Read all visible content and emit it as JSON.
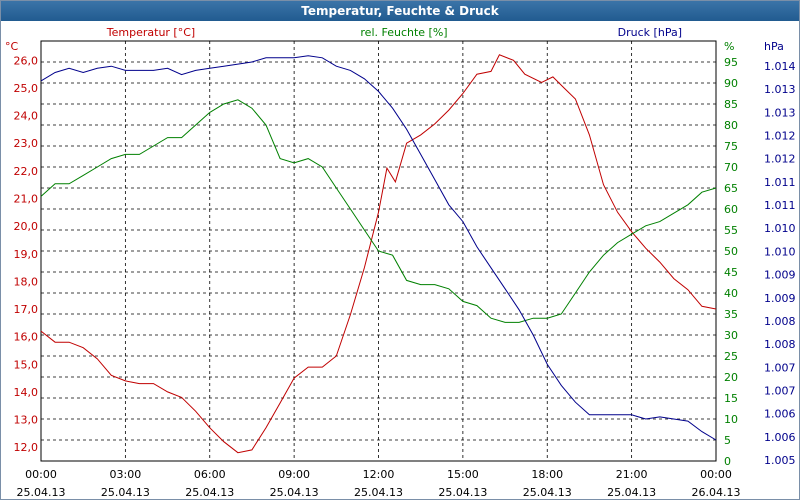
{
  "title": "Temperatur, Feuchte & Druck",
  "colors": {
    "temperature": "#c00000",
    "humidity": "#008000",
    "pressure": "#00008b",
    "grid": "#000000",
    "titlebar": "#2b6397"
  },
  "chart_data": {
    "type": "line",
    "title": "Temperatur, Feuchte & Druck",
    "grid": true,
    "xlabel": "",
    "x_ticks": [
      {
        "time": "00:00",
        "date": "25.04.13"
      },
      {
        "time": "03:00",
        "date": "25.04.13"
      },
      {
        "time": "06:00",
        "date": "25.04.13"
      },
      {
        "time": "09:00",
        "date": "25.04.13"
      },
      {
        "time": "12:00",
        "date": "25.04.13"
      },
      {
        "time": "15:00",
        "date": "25.04.13"
      },
      {
        "time": "18:00",
        "date": "25.04.13"
      },
      {
        "time": "21:00",
        "date": "25.04.13"
      },
      {
        "time": "00:00",
        "date": "26.04.13"
      }
    ],
    "xlim": [
      0,
      24
    ],
    "axes": {
      "left": {
        "unit": "°C",
        "ylim": [
          11.5,
          26.7
        ],
        "ticks": [
          "12,0",
          "13,0",
          "14,0",
          "15,0",
          "16,0",
          "17,0",
          "18,0",
          "19,0",
          "20,0",
          "21,0",
          "22,0",
          "23,0",
          "24,0",
          "25,0",
          "26,0"
        ]
      },
      "hum": {
        "unit": "%",
        "ylim": [
          0,
          100
        ],
        "ticks": [
          "0",
          "5",
          "10",
          "15",
          "20",
          "25",
          "30",
          "35",
          "40",
          "45",
          "50",
          "55",
          "60",
          "65",
          "70",
          "75",
          "80",
          "85",
          "90",
          "95"
        ]
      },
      "right": {
        "unit": "hPa",
        "ticks": [
          "1.005",
          "1.006",
          "1.006",
          "1.007",
          "1.007",
          "1.008",
          "1.008",
          "1.009",
          "1.009",
          "1.010",
          "1.010",
          "1.011",
          "1.011",
          "1.012",
          "1.012",
          "1.013",
          "1.013",
          "1.014"
        ]
      }
    },
    "series": [
      {
        "name": "Temperatur [°C]",
        "axis": "left",
        "points": [
          [
            0,
            16.2
          ],
          [
            0.5,
            15.8
          ],
          [
            1,
            15.8
          ],
          [
            1.5,
            15.6
          ],
          [
            2,
            15.2
          ],
          [
            2.5,
            14.6
          ],
          [
            3,
            14.4
          ],
          [
            3.5,
            14.3
          ],
          [
            4,
            14.3
          ],
          [
            4.5,
            14.0
          ],
          [
            5,
            13.8
          ],
          [
            5.5,
            13.3
          ],
          [
            6,
            12.7
          ],
          [
            6.5,
            12.2
          ],
          [
            7,
            11.8
          ],
          [
            7.5,
            11.9
          ],
          [
            8,
            12.7
          ],
          [
            8.5,
            13.6
          ],
          [
            9,
            14.5
          ],
          [
            9.5,
            14.9
          ],
          [
            10,
            14.9
          ],
          [
            10.5,
            15.3
          ],
          [
            11,
            16.8
          ],
          [
            11.5,
            18.5
          ],
          [
            12,
            20.5
          ],
          [
            12.3,
            22.1
          ],
          [
            12.6,
            21.6
          ],
          [
            13,
            23.0
          ],
          [
            13.5,
            23.3
          ],
          [
            14,
            23.7
          ],
          [
            14.5,
            24.2
          ],
          [
            15,
            24.8
          ],
          [
            15.5,
            25.5
          ],
          [
            16,
            25.6
          ],
          [
            16.3,
            26.2
          ],
          [
            16.8,
            26.0
          ],
          [
            17.2,
            25.5
          ],
          [
            17.8,
            25.2
          ],
          [
            18.2,
            25.4
          ],
          [
            18.6,
            25.0
          ],
          [
            19,
            24.6
          ],
          [
            19.5,
            23.3
          ],
          [
            20,
            21.5
          ],
          [
            20.5,
            20.5
          ],
          [
            21,
            19.8
          ],
          [
            21.5,
            19.2
          ],
          [
            22,
            18.7
          ],
          [
            22.5,
            18.1
          ],
          [
            23,
            17.7
          ],
          [
            23.5,
            17.1
          ],
          [
            24,
            17.0
          ]
        ]
      },
      {
        "name": "rel. Feuchte [%]",
        "axis": "hum",
        "points": [
          [
            0,
            63
          ],
          [
            0.5,
            66
          ],
          [
            1,
            66
          ],
          [
            1.5,
            68
          ],
          [
            2,
            70
          ],
          [
            2.5,
            72
          ],
          [
            3,
            73
          ],
          [
            3.5,
            73
          ],
          [
            4,
            75
          ],
          [
            4.5,
            77
          ],
          [
            5,
            77
          ],
          [
            5.5,
            80
          ],
          [
            6,
            83
          ],
          [
            6.5,
            85
          ],
          [
            7,
            86
          ],
          [
            7.5,
            84
          ],
          [
            8,
            80
          ],
          [
            8.5,
            72
          ],
          [
            9,
            71
          ],
          [
            9.5,
            72
          ],
          [
            10,
            70
          ],
          [
            10.5,
            65
          ],
          [
            11,
            60
          ],
          [
            11.5,
            55
          ],
          [
            12,
            50
          ],
          [
            12.5,
            49
          ],
          [
            13,
            43
          ],
          [
            13.5,
            42
          ],
          [
            14,
            42
          ],
          [
            14.5,
            41
          ],
          [
            15,
            38
          ],
          [
            15.5,
            37
          ],
          [
            16,
            34
          ],
          [
            16.5,
            33
          ],
          [
            17,
            33
          ],
          [
            17.5,
            34
          ],
          [
            18,
            34
          ],
          [
            18.5,
            35
          ],
          [
            19,
            40
          ],
          [
            19.5,
            45
          ],
          [
            20,
            49
          ],
          [
            20.5,
            52
          ],
          [
            21,
            54
          ],
          [
            21.5,
            56
          ],
          [
            22,
            57
          ],
          [
            22.5,
            59
          ],
          [
            23,
            61
          ],
          [
            23.5,
            64
          ],
          [
            24,
            65
          ]
        ]
      },
      {
        "name": "Druck [hPa]",
        "axis": "right",
        "points": [
          [
            0,
            90.5
          ],
          [
            0.5,
            92.5
          ],
          [
            1,
            93.5
          ],
          [
            1.5,
            92.5
          ],
          [
            2,
            93.5
          ],
          [
            2.5,
            94
          ],
          [
            3,
            93
          ],
          [
            3.5,
            93
          ],
          [
            4,
            93
          ],
          [
            4.5,
            93.5
          ],
          [
            5,
            92
          ],
          [
            5.5,
            93
          ],
          [
            6,
            93.5
          ],
          [
            6.5,
            94
          ],
          [
            7,
            94.5
          ],
          [
            7.5,
            95
          ],
          [
            8,
            96
          ],
          [
            8.5,
            96
          ],
          [
            9,
            96
          ],
          [
            9.5,
            96.5
          ],
          [
            10,
            96
          ],
          [
            10.5,
            94
          ],
          [
            11,
            93
          ],
          [
            11.5,
            91
          ],
          [
            12,
            88
          ],
          [
            12.5,
            84
          ],
          [
            13,
            79
          ],
          [
            13.5,
            73
          ],
          [
            14,
            67
          ],
          [
            14.5,
            61
          ],
          [
            15,
            57
          ],
          [
            15.5,
            51
          ],
          [
            16,
            46
          ],
          [
            16.5,
            41
          ],
          [
            17,
            36
          ],
          [
            17.5,
            30
          ],
          [
            18,
            23
          ],
          [
            18.5,
            18
          ],
          [
            19,
            14
          ],
          [
            19.5,
            11
          ],
          [
            20,
            11
          ],
          [
            20.5,
            11
          ],
          [
            21,
            11
          ],
          [
            21.5,
            10
          ],
          [
            22,
            10.5
          ],
          [
            22.5,
            10
          ],
          [
            23,
            9.5
          ],
          [
            23.5,
            7
          ],
          [
            24,
            5
          ]
        ]
      }
    ]
  }
}
